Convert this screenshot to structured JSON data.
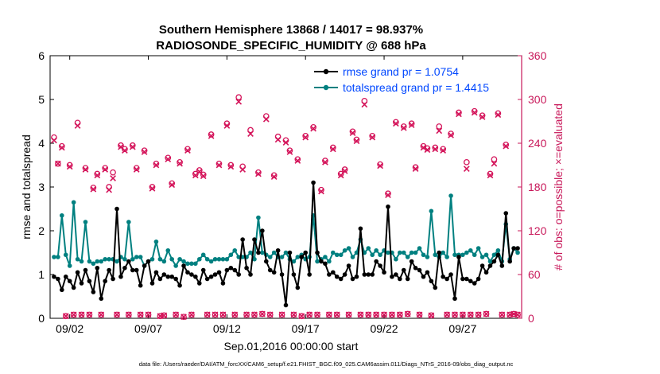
{
  "chart_data": {
    "type": "line",
    "title_line1": "Southern Hemisphere 13868 / 14017 = 98.937%",
    "title_line2": "RADIOSONDE_SPECIFIC_HUMIDITY @ 688 hPa",
    "xlabel": "Sep.01,2016 00:00:00 start",
    "ylabel_left": "rmse and totalspread",
    "ylabel_right": "# of obs: o=possible; ×=evaluated",
    "footer": "data file: /Users/raeder/DAI/ATM_forcXX/CAM6_setup/f.e21.FHIST_BGC.f09_025.CAM6assim.011/Diags_NTrS_2016-09/obs_diag_output.nc",
    "xlim": [
      0.75,
      30.75
    ],
    "ylim_left": [
      0,
      6
    ],
    "ylim_right": [
      0,
      360
    ],
    "left_ticks": [
      "0",
      "1",
      "2",
      "3",
      "4",
      "5",
      "6"
    ],
    "right_ticks": [
      "0",
      "60",
      "120",
      "180",
      "240",
      "300",
      "360"
    ],
    "x_tick_values": [
      2,
      7,
      12,
      17,
      22,
      27
    ],
    "x_tick_labels": [
      "09/02",
      "09/07",
      "09/12",
      "09/17",
      "09/22",
      "09/27"
    ],
    "colors": {
      "rmse": "#000000",
      "totalspread": "#008080",
      "obs": "#d4145a",
      "legend_text": "#0047ff",
      "right_axis": "#c8185a"
    },
    "series": [
      {
        "name": "rmse grand pr = 1.0754",
        "key": "rmse",
        "x": [
          1.0,
          1.25,
          1.5,
          1.75,
          2.0,
          2.25,
          2.5,
          2.75,
          3.0,
          3.25,
          3.5,
          3.75,
          4.0,
          4.25,
          4.5,
          4.75,
          5.0,
          5.25,
          5.5,
          5.75,
          6.0,
          6.25,
          6.5,
          6.75,
          7.0,
          7.25,
          7.5,
          7.75,
          8.0,
          8.25,
          8.5,
          8.75,
          9.0,
          9.25,
          9.5,
          9.75,
          10.0,
          10.25,
          10.5,
          10.75,
          11.0,
          11.25,
          11.5,
          11.75,
          12.0,
          12.25,
          12.5,
          12.75,
          13.0,
          13.25,
          13.5,
          13.75,
          14.0,
          14.25,
          14.5,
          14.75,
          15.0,
          15.25,
          15.5,
          15.75,
          16.0,
          16.25,
          16.5,
          16.75,
          17.0,
          17.25,
          17.5,
          17.75,
          18.0,
          18.25,
          18.5,
          18.75,
          19.0,
          19.25,
          19.5,
          19.75,
          20.0,
          20.25,
          20.5,
          20.75,
          21.0,
          21.25,
          21.5,
          21.75,
          22.0,
          22.25,
          22.5,
          22.75,
          23.0,
          23.25,
          23.5,
          23.75,
          24.0,
          24.25,
          24.5,
          24.75,
          25.0,
          25.25,
          25.5,
          25.75,
          26.0,
          26.25,
          26.5,
          26.75,
          27.0,
          27.25,
          27.5,
          27.75,
          28.0,
          28.25,
          28.5,
          28.75,
          29.0,
          29.25,
          29.5,
          29.75,
          30.0,
          30.25,
          30.5
        ],
        "values": [
          0.95,
          0.9,
          0.65,
          0.95,
          0.85,
          0.7,
          1.05,
          0.8,
          1.1,
          0.85,
          0.6,
          1.15,
          0.45,
          0.85,
          1.1,
          0.9,
          2.5,
          0.95,
          1.15,
          1.3,
          1.1,
          1.1,
          0.75,
          1.2,
          1.3,
          0.8,
          1.05,
          0.9,
          1.0,
          0.95,
          0.95,
          0.9,
          0.75,
          1.2,
          1.05,
          1.0,
          0.95,
          0.8,
          1.1,
          0.9,
          0.95,
          1.0,
          1.05,
          0.8,
          1.1,
          1.15,
          1.1,
          1.0,
          1.8,
          1.15,
          1.0,
          1.8,
          1.5,
          2.0,
          1.3,
          1.1,
          1.05,
          1.55,
          1.0,
          0.3,
          1.5,
          1.0,
          0.7,
          1.4,
          1.5,
          1.0,
          3.1,
          1.5,
          1.3,
          1.25,
          1.0,
          1.05,
          0.95,
          0.9,
          1.0,
          1.2,
          0.9,
          0.95,
          2.05,
          1.0,
          1.0,
          1.0,
          1.3,
          1.2,
          1.05,
          2.55,
          0.95,
          1.0,
          0.9,
          1.1,
          0.9,
          1.3,
          1.15,
          1.1,
          0.95,
          1.05,
          0.85,
          0.7,
          1.5,
          0.95,
          0.9,
          1.0,
          0.45,
          1.4,
          0.9,
          0.9,
          0.85,
          0.8,
          0.9,
          1.2,
          1.05,
          1.2,
          1.3,
          1.45,
          1.2,
          2.4,
          1.3,
          1.6,
          1.6
        ]
      },
      {
        "name": "totalspread grand pr = 1.4415",
        "key": "totalspread",
        "x": [
          1.0,
          1.25,
          1.5,
          1.75,
          2.0,
          2.25,
          2.5,
          2.75,
          3.0,
          3.25,
          3.5,
          3.75,
          4.0,
          4.25,
          4.5,
          4.75,
          5.0,
          5.25,
          5.5,
          5.75,
          6.0,
          6.25,
          6.5,
          6.75,
          7.0,
          7.25,
          7.5,
          7.75,
          8.0,
          8.25,
          8.5,
          8.75,
          9.0,
          9.25,
          9.5,
          9.75,
          10.0,
          10.25,
          10.5,
          10.75,
          11.0,
          11.25,
          11.5,
          11.75,
          12.0,
          12.25,
          12.5,
          12.75,
          13.0,
          13.25,
          13.5,
          13.75,
          14.0,
          14.25,
          14.5,
          14.75,
          15.0,
          15.25,
          15.5,
          15.75,
          16.0,
          16.25,
          16.5,
          16.75,
          17.0,
          17.25,
          17.5,
          17.75,
          18.0,
          18.25,
          18.5,
          18.75,
          19.0,
          19.25,
          19.5,
          19.75,
          20.0,
          20.25,
          20.5,
          20.75,
          21.0,
          21.25,
          21.5,
          21.75,
          22.0,
          22.25,
          22.5,
          22.75,
          23.0,
          23.25,
          23.5,
          23.75,
          24.0,
          24.25,
          24.5,
          24.75,
          25.0,
          25.25,
          25.5,
          25.75,
          26.0,
          26.25,
          26.5,
          26.75,
          27.0,
          27.25,
          27.5,
          27.75,
          28.0,
          28.25,
          28.5,
          28.75,
          29.0,
          29.25,
          29.5,
          29.75,
          30.0,
          30.25,
          30.5
        ],
        "values": [
          1.4,
          1.4,
          2.35,
          1.45,
          1.2,
          2.65,
          1.35,
          1.3,
          2.2,
          1.3,
          1.25,
          1.3,
          1.3,
          1.35,
          1.35,
          1.35,
          1.3,
          1.4,
          1.35,
          2.2,
          1.35,
          1.4,
          1.4,
          1.2,
          1.3,
          1.35,
          1.75,
          1.35,
          1.3,
          1.55,
          1.35,
          1.2,
          1.35,
          1.3,
          1.25,
          1.25,
          1.25,
          1.35,
          1.45,
          1.35,
          1.3,
          1.35,
          1.35,
          1.35,
          1.35,
          1.45,
          1.55,
          1.4,
          1.4,
          1.4,
          1.5,
          1.35,
          2.3,
          1.5,
          1.45,
          1.4,
          1.5,
          1.4,
          1.4,
          1.5,
          1.35,
          1.3,
          1.4,
          1.45,
          1.35,
          1.4,
          2.35,
          1.3,
          1.35,
          1.4,
          1.3,
          1.5,
          1.45,
          1.45,
          1.55,
          1.6,
          1.4,
          1.5,
          1.8,
          1.5,
          1.6,
          1.45,
          1.55,
          1.45,
          1.55,
          1.5,
          1.5,
          1.35,
          1.5,
          1.5,
          1.4,
          1.5,
          1.5,
          1.6,
          1.45,
          1.4,
          2.45,
          1.45,
          1.4,
          1.5,
          1.4,
          2.8,
          1.45,
          1.45,
          1.45,
          1.5,
          1.55,
          1.45,
          1.6,
          1.4,
          1.45,
          1.3,
          1.45,
          1.55,
          1.3,
          2.15,
          1.35,
          1.6,
          1.5
        ]
      }
    ],
    "obs_possible": {
      "x": [
        1.0,
        1.25,
        1.5,
        1.75,
        2.0,
        2.25,
        2.5,
        2.75,
        3.0,
        3.25,
        3.5,
        3.75,
        4.0,
        4.25,
        4.5,
        4.75,
        5.0,
        5.25,
        5.5,
        5.75,
        6.0,
        6.25,
        6.5,
        6.75,
        7.0,
        7.25,
        7.5,
        7.75,
        8.0,
        8.25,
        8.5,
        8.75,
        9.0,
        9.25,
        9.5,
        9.75,
        10.0,
        10.25,
        10.5,
        10.75,
        11.0,
        11.25,
        11.5,
        11.75,
        12.0,
        12.25,
        12.5,
        12.75,
        13.0,
        13.25,
        13.5,
        13.75,
        14.0,
        14.25,
        14.5,
        14.75,
        15.0,
        15.25,
        15.5,
        15.75,
        16.0,
        16.25,
        16.5,
        16.75,
        17.0,
        17.25,
        17.5,
        17.75,
        18.0,
        18.25,
        18.5,
        18.75,
        19.0,
        19.25,
        19.5,
        19.75,
        20.0,
        20.25,
        20.5,
        20.75,
        21.0,
        21.25,
        21.5,
        21.75,
        22.0,
        22.25,
        22.5,
        22.75,
        23.0,
        23.25,
        23.5,
        23.75,
        24.0,
        24.25,
        24.5,
        24.75,
        25.0,
        25.25,
        25.5,
        25.75,
        26.0,
        26.25,
        26.5,
        26.75,
        27.0,
        27.25,
        27.5,
        27.75,
        28.0,
        28.25,
        28.5,
        28.75,
        29.0,
        29.25,
        29.5,
        29.75,
        30.0,
        30.25,
        30.5
      ],
      "values": [
        248,
        212,
        236,
        3,
        210,
        5,
        268,
        5,
        206,
        5,
        179,
        198,
        5,
        206,
        180,
        200,
        5,
        237,
        232,
        5,
        237,
        206,
        5,
        230,
        5,
        180,
        212,
        3,
        4,
        220,
        185,
        5,
        214,
        2,
        232,
        5,
        198,
        203,
        197,
        5,
        252,
        5,
        212,
        5,
        267,
        210,
        5,
        303,
        208,
        5,
        258,
        5,
        200,
        6,
        277,
        5,
        196,
        249,
        5,
        244,
        230,
        5,
        218,
        3,
        250,
        5,
        262,
        5,
        176,
        216,
        5,
        234,
        5,
        198,
        204,
        5,
        256,
        245,
        5,
        298,
        5,
        250,
        5,
        211,
        5,
        171,
        5,
        269,
        5,
        263,
        6,
        267,
        207,
        5,
        236,
        233,
        4,
        234,
        263,
        232,
        5,
        253,
        5,
        282,
        5,
        214,
        5,
        284,
        5,
        278,
        6,
        198,
        218,
        281,
        5,
        238,
        5,
        6,
        5
      ]
    },
    "obs_evaluated": {
      "x": [
        1.0,
        1.25,
        1.5,
        1.75,
        2.0,
        2.25,
        2.5,
        2.75,
        3.0,
        3.25,
        3.5,
        3.75,
        4.0,
        4.25,
        4.5,
        4.75,
        5.0,
        5.25,
        5.5,
        5.75,
        6.0,
        6.25,
        6.5,
        6.75,
        7.0,
        7.25,
        7.5,
        7.75,
        8.0,
        8.25,
        8.5,
        8.75,
        9.0,
        9.25,
        9.5,
        9.75,
        10.0,
        10.25,
        10.5,
        10.75,
        11.0,
        11.25,
        11.5,
        11.75,
        12.0,
        12.25,
        12.5,
        12.75,
        13.0,
        13.25,
        13.5,
        13.75,
        14.0,
        14.25,
        14.5,
        14.75,
        15.0,
        15.25,
        15.5,
        15.75,
        16.0,
        16.25,
        16.5,
        16.75,
        17.0,
        17.25,
        17.5,
        17.75,
        18.0,
        18.25,
        18.5,
        18.75,
        19.0,
        19.25,
        19.5,
        19.75,
        20.0,
        20.25,
        20.5,
        20.75,
        21.0,
        21.25,
        21.5,
        21.75,
        22.0,
        22.25,
        22.5,
        22.75,
        23.0,
        23.25,
        23.5,
        23.75,
        24.0,
        24.25,
        24.5,
        24.75,
        25.0,
        25.25,
        25.5,
        25.75,
        26.0,
        26.25,
        26.5,
        26.75,
        27.0,
        27.25,
        27.5,
        27.75,
        28.0,
        28.25,
        28.5,
        28.75,
        29.0,
        29.25,
        29.5,
        29.75,
        30.0,
        30.25,
        30.5
      ],
      "values": [
        244,
        212,
        234,
        3,
        208,
        5,
        264,
        5,
        204,
        5,
        177,
        196,
        5,
        204,
        176,
        192,
        5,
        235,
        230,
        5,
        235,
        204,
        5,
        228,
        5,
        178,
        210,
        3,
        4,
        218,
        183,
        5,
        212,
        2,
        230,
        5,
        196,
        201,
        195,
        5,
        250,
        5,
        210,
        5,
        264,
        208,
        5,
        297,
        204,
        5,
        253,
        5,
        198,
        6,
        273,
        5,
        194,
        245,
        5,
        241,
        228,
        5,
        216,
        3,
        248,
        5,
        260,
        5,
        174,
        214,
        5,
        232,
        5,
        196,
        202,
        5,
        254,
        243,
        5,
        293,
        5,
        248,
        5,
        209,
        5,
        169,
        5,
        267,
        5,
        261,
        6,
        265,
        205,
        5,
        234,
        231,
        4,
        232,
        257,
        230,
        5,
        251,
        5,
        280,
        5,
        205,
        5,
        282,
        5,
        276,
        6,
        196,
        212,
        279,
        5,
        236,
        5,
        6,
        5
      ]
    },
    "legend": {
      "rmse_label": "rmse grand pr = 1.0754",
      "spread_label": "totalspread grand pr = 1.4415"
    }
  }
}
